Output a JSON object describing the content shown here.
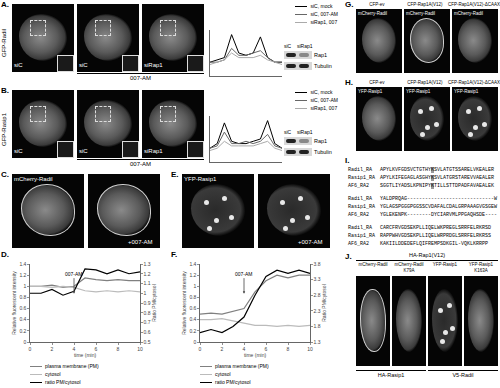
{
  "figure": {
    "panels": {
      "A": {
        "label": "A.",
        "construct": "GFP-Radil",
        "images": [
          "siC",
          "siC",
          "siRap1"
        ],
        "treatment": "007-AM",
        "blot": {
          "lanes": [
            "siC",
            "siRap1"
          ],
          "bands": [
            "Rap1",
            "Tubulin"
          ]
        }
      },
      "B": {
        "label": "B.",
        "construct": "GFP-Rasip1",
        "images": [
          "siC",
          "siC",
          "siRap1"
        ],
        "treatment": "007-AM",
        "blot": {
          "lanes": [
            "siC",
            "siRap1"
          ],
          "bands": [
            "Rap1",
            "Tubulin"
          ]
        }
      },
      "C": {
        "label": "C.",
        "construct": "mCherry-Radil",
        "treatment": "+007-AM"
      },
      "D": {
        "label": "D."
      },
      "E": {
        "label": "E.",
        "construct": "YFP-Rasip1",
        "treatment": "+007-AM"
      },
      "F": {
        "label": "F."
      },
      "G": {
        "label": "G.",
        "columns": [
          "CFP-ev",
          "CFP-Rap1A(V12)",
          "CFP-Rap1A(V12)-ΔCAAX"
        ],
        "construct": "mCherry-Radil"
      },
      "H": {
        "label": "H.",
        "columns": [
          "CFP-ev",
          "CFP-Rap1A(V12)",
          "CFP-Rap1A(V12)-ΔCAAX"
        ],
        "construct": "YFP-Rasip1"
      },
      "I": {
        "label": "I.",
        "highlighted_column": 17,
        "blocks": [
          [
            {
              "name": "Radil_RA",
              "seq": "APYLKVFGDSVCTGTHYKSVLATGTSSARELVKEALER"
            },
            {
              "name": "Rasip1_RA",
              "seq": "APYLKIFEGAGLASGHYKSVLATGRSTAREVVAEALER"
            },
            {
              "name": "AF6_RA2",
              "seq": "SGGTLIYADSLKPNIPYKTILLSTTDPADFAVAEALEK"
            }
          ],
          [
            {
              "name": "Radil_RA",
              "seq": "YALDPRQAG-----------------------------W"
            },
            {
              "name": "Rasip1_RA",
              "seq": "YGLAGSPGGGPGGSSCVDAFALCDALGRPAAAGVGSGEW"
            },
            {
              "name": "AF6_RA2",
              "seq": "YGLEKENPK--------DYCIARVMLPPGAQHSDE----"
            }
          ],
          [
            {
              "name": "Radil_RA",
              "seq": "CARCFRVGDSEKPLLIQELWKPREGLSRRFELRKRSD"
            },
            {
              "name": "Rasip1_RA",
              "seq": "RAPPWHVGDSEKPLLIQELWRPRDGLSRRFELRKRSS"
            },
            {
              "name": "AF6_RA2",
              "seq": "KAKIILDDEDEFLQIFREMPSDKGIL-VQKLKRRPP"
            }
          ]
        ]
      },
      "J": {
        "label": "J.",
        "header": "HA-Rap1(V12)",
        "images": [
          "mCherry-Radil",
          "mCherry-Radil K79A",
          "YFP-Rasip1",
          "YFP-Rasip1 K163A"
        ],
        "groups": [
          "HA-Rasip1",
          "V5-Radil"
        ]
      }
    }
  },
  "chart_data": [
    {
      "type": "line",
      "x": [
        0,
        1,
        2,
        3,
        4,
        5,
        6,
        7,
        8,
        9,
        10
      ],
      "xlim": [
        0,
        10
      ],
      "ylim": [
        0,
        1
      ],
      "tick_labels": false,
      "grid": false,
      "legend": "upper right",
      "series": [
        {
          "name": "siC, mock",
          "color": "#000000",
          "values": [
            0.3,
            0.35,
            0.4,
            0.9,
            0.5,
            0.45,
            0.5,
            0.85,
            0.4,
            0.3,
            0.3
          ]
        },
        {
          "name": "siC, 007-AM",
          "color": "#666666",
          "values": [
            0.3,
            0.3,
            0.35,
            0.6,
            0.45,
            0.45,
            0.5,
            0.55,
            0.4,
            0.3,
            0.3
          ]
        },
        {
          "name": "siRap1, 007",
          "color": "#aaaaaa",
          "values": [
            0.25,
            0.3,
            0.35,
            0.5,
            0.4,
            0.4,
            0.4,
            0.45,
            0.35,
            0.3,
            0.25
          ]
        }
      ]
    },
    {
      "type": "line",
      "x": [
        0,
        1,
        2,
        3,
        4,
        5,
        6,
        7,
        8,
        9,
        10
      ],
      "xlim": [
        0,
        10
      ],
      "ylim": [
        0,
        1
      ],
      "tick_labels": false,
      "grid": false,
      "legend": "upper right",
      "series": [
        {
          "name": "siC, mock",
          "color": "#000000",
          "values": [
            0.3,
            0.4,
            0.85,
            0.45,
            0.4,
            0.4,
            0.45,
            0.5,
            0.9,
            0.4,
            0.3
          ]
        },
        {
          "name": "siC, 007-AM",
          "color": "#666666",
          "values": [
            0.3,
            0.35,
            0.65,
            0.4,
            0.4,
            0.45,
            0.4,
            0.45,
            0.6,
            0.35,
            0.3
          ]
        },
        {
          "name": "siRap1, 007",
          "color": "#aaaaaa",
          "values": [
            0.25,
            0.3,
            0.45,
            0.35,
            0.35,
            0.35,
            0.35,
            0.4,
            0.45,
            0.3,
            0.25
          ]
        }
      ]
    },
    {
      "type": "line",
      "x": [
        0,
        1,
        2,
        3,
        4,
        5,
        6,
        7,
        8,
        9,
        10
      ],
      "xlabel": "time (min)",
      "ylabel": "Relative fluorescent intensity",
      "y2label": "Ratio PM/cytosol",
      "xlim": [
        0,
        10
      ],
      "xticks": [
        0,
        2,
        4,
        6,
        8,
        10
      ],
      "ylim": [
        0,
        1.4
      ],
      "yticks": [
        0,
        0.2,
        0.4,
        0.6,
        0.8,
        1,
        1.2,
        1.4
      ],
      "y2lim": [
        0.5,
        1.3
      ],
      "y2ticks": [
        0.5,
        0.6,
        0.7,
        0.8,
        0.9,
        1,
        1.1,
        1.2,
        1.3
      ],
      "grid": false,
      "legend": "bottom",
      "annotations": [
        {
          "text": "007-AM",
          "x": 4
        }
      ],
      "series": [
        {
          "name": "plasma membrane (PM)",
          "color": "#808080",
          "values": [
            1.0,
            1.0,
            1.02,
            0.98,
            1.0,
            1.15,
            1.12,
            1.1,
            1.12,
            1.1,
            1.1
          ]
        },
        {
          "name": "cytosol",
          "color": "#bbbbbb",
          "values": [
            1.0,
            1.0,
            0.98,
            1.0,
            0.98,
            0.92,
            0.9,
            0.92,
            0.9,
            0.92,
            0.9
          ]
        },
        {
          "name": "ratio PM/cytosol",
          "color": "#000000",
          "axis": "y2",
          "values": [
            1.0,
            1.0,
            1.04,
            0.98,
            1.02,
            1.25,
            1.24,
            1.2,
            1.24,
            1.2,
            1.22
          ]
        }
      ]
    },
    {
      "type": "line",
      "x": [
        0,
        1,
        2,
        3,
        4,
        5,
        6,
        7,
        8,
        9,
        10
      ],
      "xlabel": "time (min)",
      "ylabel": "Relative fluorescent intensity",
      "y2label": "Ratio PM/cytosol",
      "xlim": [
        0,
        10
      ],
      "xticks": [
        0,
        2,
        4,
        6,
        8,
        10
      ],
      "ylim": [
        0,
        1.4
      ],
      "yticks": [
        0,
        0.2,
        0.4,
        0.6,
        0.8,
        1,
        1.2,
        1.4
      ],
      "y2lim": [
        1.3,
        3.8
      ],
      "y2ticks": [
        1.3,
        1.8,
        2.3,
        2.8,
        3.3,
        3.8
      ],
      "grid": false,
      "legend": "bottom",
      "annotations": [
        {
          "text": "007-AM",
          "x": 4
        }
      ],
      "series": [
        {
          "name": "plasma membrane (PM)",
          "color": "#808080",
          "values": [
            0.5,
            0.52,
            0.5,
            0.55,
            0.6,
            0.9,
            1.1,
            1.2,
            1.15,
            1.2,
            1.2
          ]
        },
        {
          "name": "cytosol",
          "color": "#bbbbbb",
          "values": [
            0.4,
            0.4,
            0.42,
            0.38,
            0.35,
            0.3,
            0.3,
            0.28,
            0.3,
            0.28,
            0.3
          ]
        },
        {
          "name": "ratio PM/cytosol",
          "color": "#000000",
          "axis": "y2",
          "values": [
            1.6,
            1.7,
            1.6,
            1.8,
            2.1,
            2.8,
            3.4,
            3.6,
            3.5,
            3.6,
            3.5
          ]
        }
      ]
    }
  ]
}
